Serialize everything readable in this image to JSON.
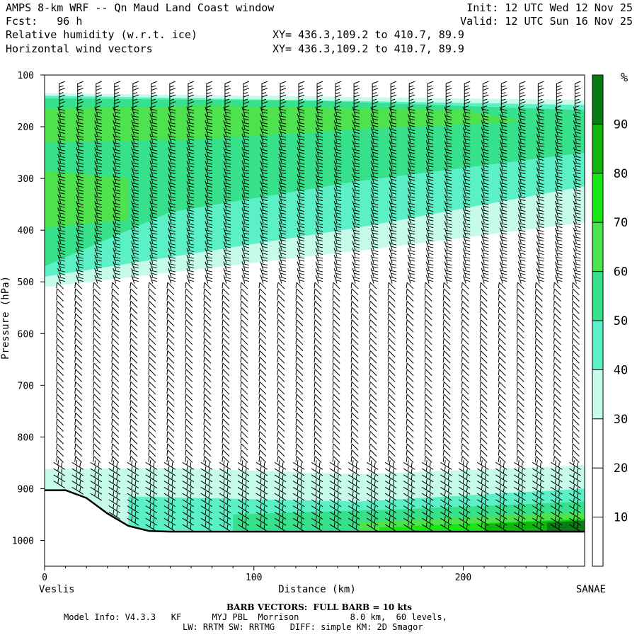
{
  "header": {
    "line1_left": "AMPS 8-km WRF -- Qn Maud Land Coast window",
    "line1_right": "Init: 12 UTC Wed 12 Nov 25",
    "line2_left": "Fcst:   96 h",
    "line2_right": "Valid: 12 UTC Sun 16 Nov 25",
    "line3_left": "Relative humidity (w.r.t. ice)",
    "line3_right": "XY= 436.3,109.2 to 410.7, 89.9",
    "line4_left": "Horizontal wind vectors",
    "line4_right": "XY= 436.3,109.2 to 410.7, 89.9"
  },
  "footer": {
    "barb_note": "BARB VECTORS:  FULL BARB = 10 kts",
    "model_line1": "Model Info: V4.3.3   KF      MYJ PBL  Morrison          8.0 km,  60 levels,",
    "model_line2": "LW: RRTM SW: RRTMG   DIFF: simple KM: 2D Smagor"
  },
  "colors": {
    "rh_30_40": "#c6fbe9",
    "rh_40_50": "#5cf0c6",
    "rh_50_60": "#37e08a",
    "rh_60_70": "#4fe24f",
    "rh_70_80": "#19e619",
    "rh_80_90": "#10b510",
    "rh_90_100": "#0a7a14",
    "terrain": "#000000"
  },
  "chart_data": {
    "type": "heatmap",
    "title": "Relative humidity (w.r.t. ice)",
    "overlay": "Horizontal wind vectors",
    "xlabel": "Distance (km)",
    "ylabel": "Pressure (hPa)",
    "x_start_label": "Veslis",
    "x_end_label": "SANAE",
    "xlim": [
      0,
      258
    ],
    "ylim": [
      1050,
      100
    ],
    "x_ticks": [
      0,
      100,
      200
    ],
    "y_ticks": [
      100,
      200,
      300,
      400,
      500,
      600,
      700,
      800,
      900,
      1000
    ],
    "colorbar_unit": "%",
    "colorbar_levels": [
      10,
      20,
      30,
      40,
      50,
      60,
      70,
      80,
      90
    ],
    "colorbar_range": [
      0,
      100
    ],
    "surface_pressure": [
      {
        "x": 0,
        "p": 903
      },
      {
        "x": 10,
        "p": 903
      },
      {
        "x": 20,
        "p": 918
      },
      {
        "x": 30,
        "p": 948
      },
      {
        "x": 40,
        "p": 972
      },
      {
        "x": 50,
        "p": 982
      },
      {
        "x": 60,
        "p": 983
      },
      {
        "x": 100,
        "p": 983
      },
      {
        "x": 150,
        "p": 983
      },
      {
        "x": 200,
        "p": 983
      },
      {
        "x": 258,
        "p": 983
      }
    ],
    "rh_regions": [
      {
        "rh_min": 30,
        "points": [
          [
            0,
            135
          ],
          [
            258,
            148
          ],
          [
            258,
            385
          ],
          [
            160,
            435
          ],
          [
            0,
            510
          ]
        ]
      },
      {
        "rh_min": 40,
        "points": [
          [
            0,
            140
          ],
          [
            258,
            158
          ],
          [
            258,
            315
          ],
          [
            150,
            395
          ],
          [
            0,
            490
          ]
        ]
      },
      {
        "rh_min": 50,
        "points": [
          [
            0,
            145
          ],
          [
            130,
            150
          ],
          [
            258,
            168
          ],
          [
            258,
            250
          ],
          [
            150,
            305
          ],
          [
            60,
            365
          ],
          [
            0,
            470
          ]
        ]
      },
      {
        "rh_min": 60,
        "points": [
          [
            0,
            165
          ],
          [
            80,
            160
          ],
          [
            200,
            168
          ],
          [
            230,
            190
          ],
          [
            150,
            205
          ],
          [
            70,
            225
          ],
          [
            0,
            230
          ]
        ]
      },
      {
        "rh_min": 60,
        "points": [
          [
            0,
            285
          ],
          [
            40,
            300
          ],
          [
            40,
            380
          ],
          [
            0,
            395
          ]
        ]
      },
      {
        "rh_min": 30,
        "points": [
          [
            0,
            862
          ],
          [
            60,
            860
          ],
          [
            150,
            872
          ],
          [
            258,
            855
          ],
          [
            258,
            983
          ],
          [
            0,
            983
          ]
        ]
      },
      {
        "rh_min": 40,
        "points": [
          [
            40,
            915
          ],
          [
            150,
            925
          ],
          [
            258,
            900
          ],
          [
            258,
            983
          ],
          [
            40,
            983
          ]
        ]
      },
      {
        "rh_min": 50,
        "points": [
          [
            90,
            950
          ],
          [
            170,
            940
          ],
          [
            258,
            925
          ],
          [
            258,
            983
          ],
          [
            90,
            983
          ]
        ]
      },
      {
        "rh_min": 60,
        "points": [
          [
            150,
            965
          ],
          [
            258,
            945
          ],
          [
            258,
            983
          ],
          [
            150,
            983
          ]
        ]
      },
      {
        "rh_min": 70,
        "points": [
          [
            160,
            975
          ],
          [
            258,
            958
          ],
          [
            258,
            983
          ],
          [
            160,
            983
          ]
        ]
      },
      {
        "rh_min": 80,
        "points": [
          [
            210,
            968
          ],
          [
            258,
            960
          ],
          [
            258,
            983
          ],
          [
            210,
            983
          ]
        ]
      },
      {
        "rh_min": 90,
        "points": [
          [
            240,
            966
          ],
          [
            258,
            962
          ],
          [
            258,
            983
          ],
          [
            240,
            983
          ]
        ]
      }
    ]
  }
}
